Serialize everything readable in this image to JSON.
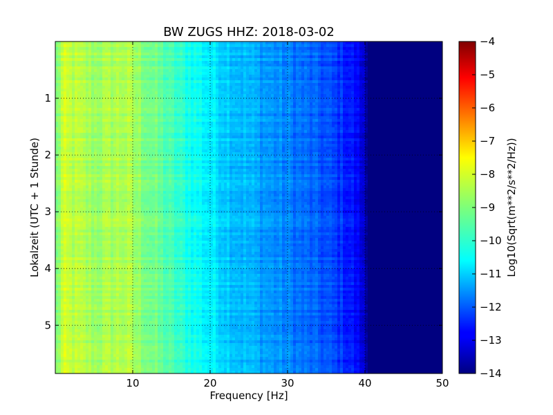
{
  "chart_data": {
    "type": "heatmap",
    "title": "BW ZUGS HHZ: 2018-03-02",
    "xlabel": "Frequency [Hz]",
    "ylabel": "Lokalzeit (UTC + 1 Stunde)",
    "xlim": [
      0,
      50
    ],
    "ylim": [
      5.85,
      0
    ],
    "x_ticks": [
      10,
      20,
      30,
      40,
      50
    ],
    "y_ticks": [
      1,
      2,
      3,
      4,
      5
    ],
    "grid": true,
    "colormap": "jet",
    "colorbar": {
      "label": "Log10(Sqrt(m**2/s**2/Hz))",
      "range": [
        -14,
        -4
      ],
      "ticks": [
        -14,
        -13,
        -12,
        -11,
        -10,
        -9,
        -8,
        -7,
        -6,
        -5,
        -4
      ]
    },
    "frequency_profile": {
      "frequency_hz": [
        0,
        1,
        5,
        9,
        13,
        16,
        20,
        23,
        26,
        30,
        33,
        35,
        37,
        38.5,
        39.5,
        40.5,
        50
      ],
      "log10_amplitude": [
        -9.2,
        -8.3,
        -8.7,
        -8.5,
        -9.2,
        -9.8,
        -10.4,
        -10.8,
        -11.1,
        -11.5,
        -11.8,
        -12.0,
        -12.3,
        -12.6,
        -13.0,
        -14.0,
        -14.0
      ]
    }
  }
}
